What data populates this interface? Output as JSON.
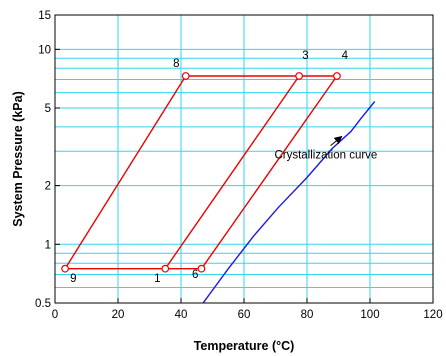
{
  "chart_data": {
    "type": "line",
    "title": "",
    "xlabel": "Temperature (°C)",
    "ylabel": "System Pressure (kPa)",
    "xlim": [
      0,
      120
    ],
    "ylim": [
      0.5,
      15
    ],
    "yscale": "log",
    "grid": true,
    "legend": "none",
    "x_ticks": [
      0,
      20,
      40,
      60,
      80,
      100,
      120
    ],
    "x_tick_labels": [
      "0",
      "20",
      "40",
      "60",
      "80",
      "100",
      "120"
    ],
    "y_ticks": [
      0.5,
      1,
      2,
      5,
      10,
      15
    ],
    "y_tick_labels": [
      "0.5",
      "1",
      "2",
      "5",
      "10",
      "15"
    ],
    "y_gridlines": [
      0.5,
      0.6,
      0.7,
      0.8,
      0.9,
      1,
      2,
      3,
      4,
      5,
      6,
      7,
      8,
      9,
      10,
      15
    ],
    "colors": {
      "cycle": "#ee0000",
      "crystallization": "#1a1aee",
      "grid": "#33d6ee",
      "frame": "#000000"
    },
    "series": [
      {
        "role": "cycle",
        "x": [
          3.2,
          41.5,
          77.5,
          89.5,
          46.5,
          35,
          3.2
        ],
        "y": [
          0.75,
          7.3,
          7.3,
          7.3,
          0.75,
          0.75,
          0.75
        ],
        "markers": [
          true,
          true,
          true,
          true,
          true,
          true,
          false
        ]
      },
      {
        "role": "cycle",
        "x": [
          35,
          77.5
        ],
        "y": [
          0.75,
          7.3
        ],
        "markers": [
          false,
          false
        ]
      },
      {
        "role": "crystallization",
        "x": [
          47,
          55,
          63,
          71,
          80,
          88,
          94,
          97,
          101.5
        ],
        "y": [
          0.5,
          0.75,
          1.1,
          1.55,
          2.2,
          3.1,
          3.8,
          4.4,
          5.4
        ],
        "markers": [
          false,
          false,
          false,
          false,
          false,
          false,
          false,
          false,
          false
        ]
      }
    ],
    "point_labels": [
      {
        "text": "8",
        "x": 38.5,
        "y": 8.1
      },
      {
        "text": "3",
        "x": 79.5,
        "y": 8.9
      },
      {
        "text": "4",
        "x": 92,
        "y": 8.9
      },
      {
        "text": "9",
        "x": 5.8,
        "y": 0.64
      },
      {
        "text": "1",
        "x": 32.5,
        "y": 0.64
      },
      {
        "text": "6",
        "x": 44.5,
        "y": 0.67
      }
    ],
    "annotations": [
      {
        "text": "Crystallization curve",
        "x": 86,
        "y": 2.75,
        "arrow_to": [
          91,
          3.7
        ]
      }
    ]
  }
}
